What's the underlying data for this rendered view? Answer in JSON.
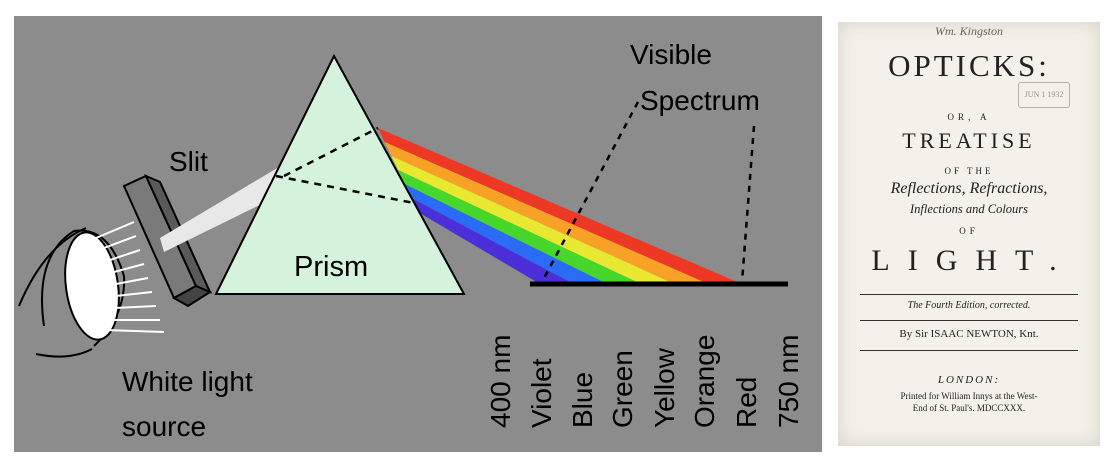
{
  "diagram": {
    "labels": {
      "slit": "Slit",
      "prism": "Prism",
      "source_line1": "White light",
      "source_line2": "source",
      "visible_line1": "Visible",
      "visible_line2": "Spectrum"
    },
    "wavelengths": {
      "min": "400 nm",
      "max": "750 nm"
    },
    "spectrum_colors": [
      {
        "name": "Violet",
        "color": "#4b2fd8"
      },
      {
        "name": "Blue",
        "color": "#2a6cf5"
      },
      {
        "name": "Green",
        "color": "#47d62a"
      },
      {
        "name": "Yellow",
        "color": "#e8e832"
      },
      {
        "name": "Orange",
        "color": "#f7a227"
      },
      {
        "name": "Red",
        "color": "#ee3826"
      }
    ],
    "background_color": "#8c8c8c",
    "prism_color": "#d4f2dc"
  },
  "title_page": {
    "signature": "Wm. Kingston",
    "stamp": "JUN 1 1932",
    "title": "OPTICKS:",
    "or_a": "OR, A",
    "treatise": "TREATISE",
    "of_the": "OF THE",
    "subjects_line1": "Reflections, Refractions,",
    "subjects_line2": "Inflections and Colours",
    "of": "OF",
    "light": "LIGHT.",
    "edition": "The Fourth Edition, corrected.",
    "author": "By Sir ISAAC NEWTON, Knt.",
    "city": "LONDON:",
    "printer_line1": "Printed for William Innys at the West-",
    "printer_line2": "End of St. Paul's. MDCCXXX."
  }
}
